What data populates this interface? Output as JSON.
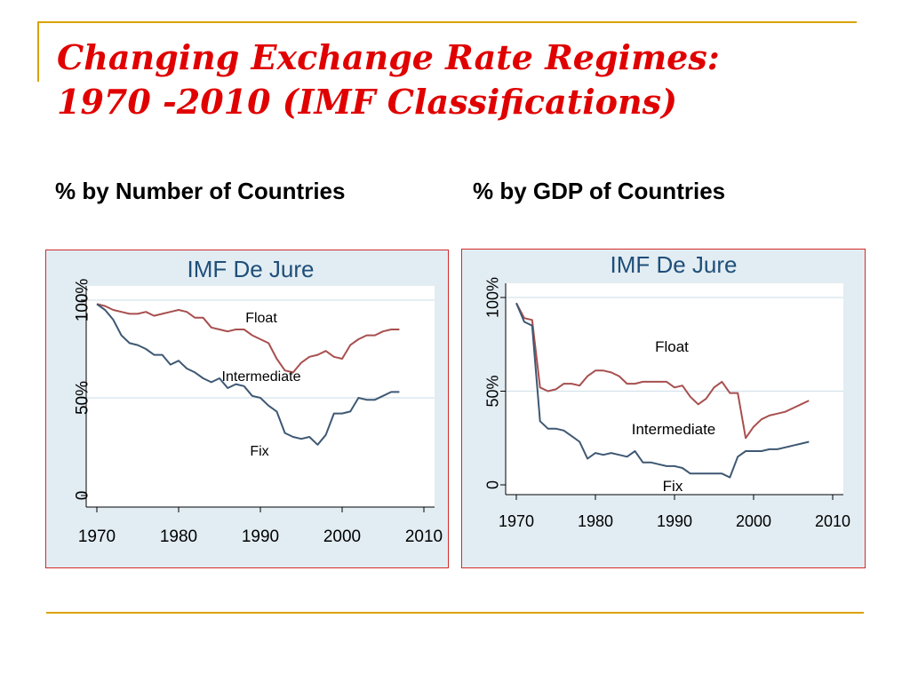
{
  "slide": {
    "title_line1": "Changing Exchange Rate Regimes:",
    "title_line2": "1970 -2010 (IMF Classifications)",
    "subtitle_left": "% by Number of Countries",
    "subtitle_right": "% by GDP of Countries"
  },
  "colors": {
    "title": "#e00000",
    "accent_rule": "#d8a300",
    "panel_border": "#d42a2a",
    "panel_background": "#e2edf3",
    "float_line": "#a84f4f",
    "fix_line": "#3e5873"
  },
  "chart_data": [
    {
      "type": "line",
      "title": "IMF De Jure",
      "xlim": [
        1970,
        2010
      ],
      "ylim": [
        0,
        100
      ],
      "x_ticks": [
        "1970",
        "1980",
        "1990",
        "2000",
        "2010"
      ],
      "y_ticks": [
        "0",
        "50%",
        "100%"
      ],
      "grid": true,
      "annotations": [
        "Float",
        "Intermediate",
        "Fix"
      ],
      "series": [
        {
          "name": "Float",
          "x": [
            1970,
            1971,
            1972,
            1973,
            1974,
            1975,
            1976,
            1977,
            1978,
            1979,
            1980,
            1981,
            1982,
            1983,
            1984,
            1985,
            1986,
            1987,
            1988,
            1989,
            1990,
            1991,
            1992,
            1993,
            1994,
            1995,
            1996,
            1997,
            1998,
            1999,
            2000,
            2001,
            2002,
            2003,
            2004,
            2005,
            2006,
            2007
          ],
          "y": [
            98,
            97,
            95,
            94,
            93,
            93,
            94,
            92,
            93,
            94,
            95,
            94,
            91,
            91,
            86,
            85,
            84,
            85,
            85,
            82,
            80,
            78,
            70,
            64,
            63,
            68,
            71,
            72,
            74,
            71,
            70,
            77,
            80,
            82,
            82,
            84,
            85,
            85
          ]
        },
        {
          "name": "Fix",
          "x": [
            1970,
            1971,
            1972,
            1973,
            1974,
            1975,
            1976,
            1977,
            1978,
            1979,
            1980,
            1981,
            1982,
            1983,
            1984,
            1985,
            1986,
            1987,
            1988,
            1989,
            1990,
            1991,
            1992,
            1993,
            1994,
            1995,
            1996,
            1997,
            1998,
            1999,
            2000,
            2001,
            2002,
            2003,
            2004,
            2005,
            2006,
            2007
          ],
          "y": [
            98,
            95,
            90,
            82,
            78,
            77,
            75,
            72,
            72,
            67,
            69,
            65,
            63,
            60,
            58,
            60,
            55,
            57,
            56,
            51,
            50,
            46,
            43,
            32,
            30,
            29,
            30,
            26,
            31,
            42,
            42,
            43,
            50,
            49,
            49,
            51,
            53,
            53
          ]
        }
      ]
    },
    {
      "type": "line",
      "title": "IMF De Jure",
      "xlim": [
        1970,
        2010
      ],
      "ylim": [
        0,
        100
      ],
      "x_ticks": [
        "1970",
        "1980",
        "1990",
        "2000",
        "2010"
      ],
      "y_ticks": [
        "0",
        "50%",
        "100%"
      ],
      "grid": true,
      "annotations": [
        "Float",
        "Intermediate",
        "Fix"
      ],
      "series": [
        {
          "name": "Float",
          "x": [
            1970,
            1971,
            1972,
            1973,
            1974,
            1975,
            1976,
            1977,
            1978,
            1979,
            1980,
            1981,
            1982,
            1983,
            1984,
            1985,
            1986,
            1987,
            1988,
            1989,
            1990,
            1991,
            1992,
            1993,
            1994,
            1995,
            1996,
            1997,
            1998,
            1999,
            2000,
            2001,
            2002,
            2003,
            2004,
            2005,
            2006,
            2007
          ],
          "y": [
            97,
            89,
            88,
            52,
            50,
            51,
            54,
            54,
            53,
            58,
            61,
            61,
            60,
            58,
            54,
            54,
            55,
            55,
            55,
            55,
            52,
            53,
            47,
            43,
            46,
            52,
            55,
            49,
            49,
            25,
            31,
            35,
            37,
            38,
            39,
            41,
            43,
            45
          ]
        },
        {
          "name": "Fix",
          "x": [
            1970,
            1971,
            1972,
            1973,
            1974,
            1975,
            1976,
            1977,
            1978,
            1979,
            1980,
            1981,
            1982,
            1983,
            1984,
            1985,
            1986,
            1987,
            1988,
            1989,
            1990,
            1991,
            1992,
            1993,
            1994,
            1995,
            1996,
            1997,
            1998,
            1999,
            2000,
            2001,
            2002,
            2003,
            2004,
            2005,
            2006,
            2007
          ],
          "y": [
            97,
            87,
            85,
            34,
            30,
            30,
            29,
            26,
            23,
            14,
            17,
            16,
            17,
            16,
            15,
            18,
            12,
            12,
            11,
            10,
            10,
            9,
            6,
            6,
            6,
            6,
            6,
            4,
            15,
            18,
            18,
            18,
            19,
            19,
            20,
            21,
            22,
            23
          ]
        }
      ]
    }
  ]
}
